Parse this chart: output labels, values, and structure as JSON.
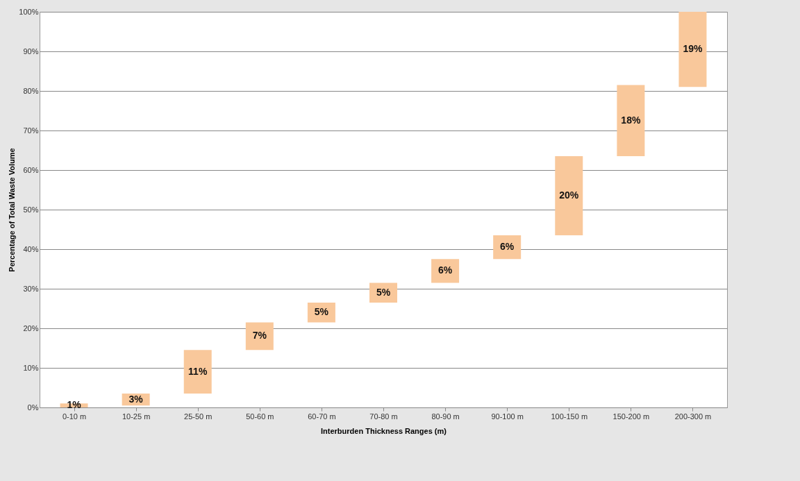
{
  "chart_data": {
    "type": "bar",
    "xlabel": "Interburden Thickness Ranges (m)",
    "ylabel": "Percentage of Total Waste Volume",
    "categories": [
      "0-10 m",
      "10-25 m",
      "25-50 m",
      "50-60 m",
      "60-70 m",
      "70-80 m",
      "80-90 m",
      "90-100 m",
      "100-150 m",
      "150-200 m",
      "200-300 m"
    ],
    "values": [
      1,
      3,
      11,
      7,
      5,
      5,
      6,
      6,
      20,
      18,
      19
    ],
    "base": [
      0,
      0.5,
      3.5,
      14.5,
      21.5,
      26.5,
      31.5,
      37.5,
      43.5,
      63.5,
      81
    ],
    "value_labels": [
      "1%",
      "3%",
      "11%",
      "7%",
      "5%",
      "5%",
      "6%",
      "6%",
      "20%",
      "18%",
      "19%"
    ],
    "color": "#f9c89b",
    "ylim": [
      0,
      100
    ],
    "yticks": [
      {
        "value": 0,
        "label": "0%"
      },
      {
        "value": 10,
        "label": "10%"
      },
      {
        "value": 20,
        "label": "20%"
      },
      {
        "value": 30,
        "label": "30%"
      },
      {
        "value": 40,
        "label": "40%"
      },
      {
        "value": 50,
        "label": "50%"
      },
      {
        "value": 60,
        "label": "60%"
      },
      {
        "value": 70,
        "label": "70%"
      },
      {
        "value": 80,
        "label": "80%"
      },
      {
        "value": 90,
        "label": "90%"
      },
      {
        "value": 100,
        "label": "100%"
      }
    ],
    "grid": "y"
  }
}
